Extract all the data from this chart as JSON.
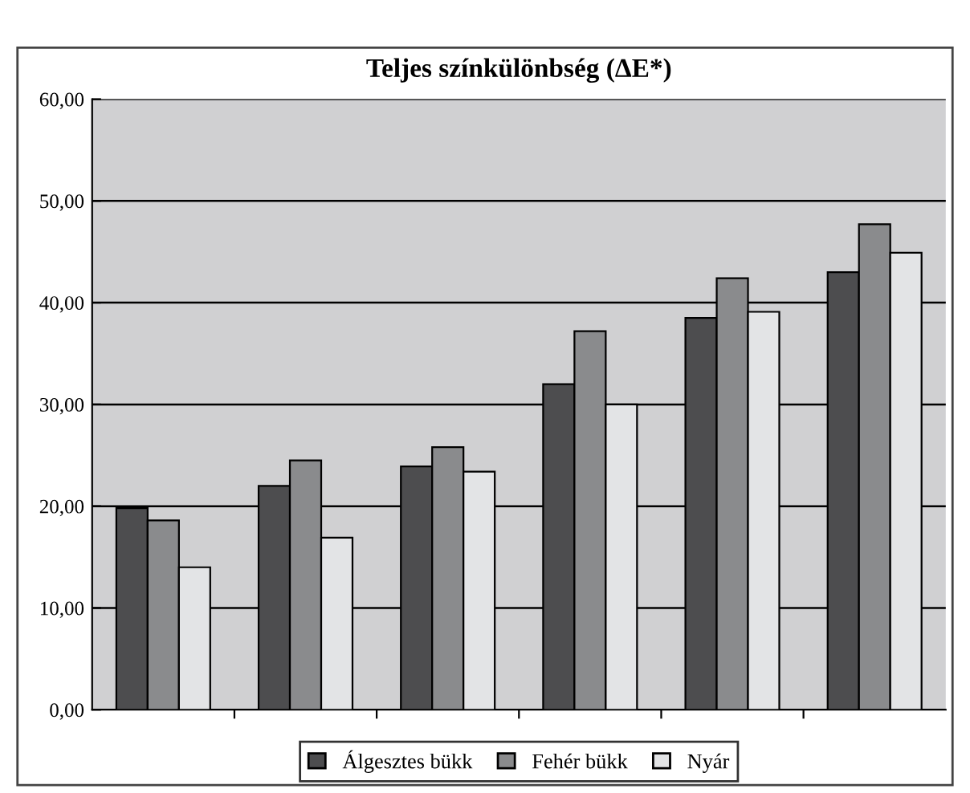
{
  "chart_data": {
    "type": "bar",
    "title": "Teljes színkülönbség (ΔE*)",
    "categories": [
      null,
      null,
      null,
      null,
      null,
      null
    ],
    "series": [
      {
        "name": "Álgesztes bükk",
        "color": "#4d4d4f",
        "values": [
          19.8,
          22.0,
          23.9,
          32.0,
          38.5,
          43.0
        ]
      },
      {
        "name": "Fehér bükk",
        "color": "#8a8b8d",
        "values": [
          18.6,
          24.5,
          25.8,
          37.2,
          42.4,
          47.7
        ]
      },
      {
        "name": "Nyár",
        "color": "#e3e4e6",
        "values": [
          14.0,
          16.9,
          23.4,
          30.0,
          39.1,
          44.9
        ]
      }
    ],
    "ylim": [
      0,
      60
    ],
    "yticks": [
      {
        "value": 0,
        "label": "0,00"
      },
      {
        "value": 10,
        "label": "10,00"
      },
      {
        "value": 20,
        "label": "20,00"
      },
      {
        "value": 30,
        "label": "30,00"
      },
      {
        "value": 40,
        "label": "40,00"
      },
      {
        "value": 50,
        "label": "50,00"
      },
      {
        "value": 60,
        "label": "60,00"
      }
    ],
    "grid": "y",
    "legend": "bottom"
  }
}
